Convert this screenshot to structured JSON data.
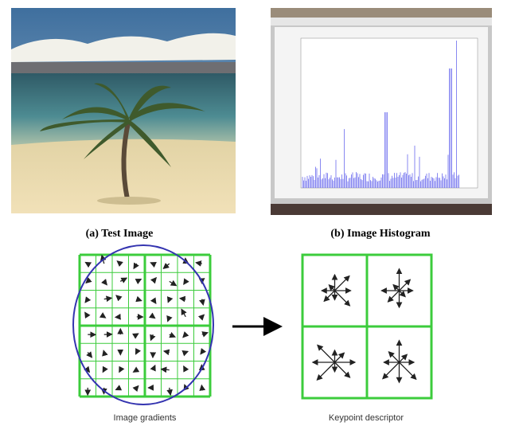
{
  "figure": {
    "top": {
      "left_caption": "(a) Test Image",
      "right_caption": "(b) Image Histogram"
    },
    "bottom": {
      "left_label": "Image gradients",
      "right_label": "Keypoint descriptor"
    }
  }
}
